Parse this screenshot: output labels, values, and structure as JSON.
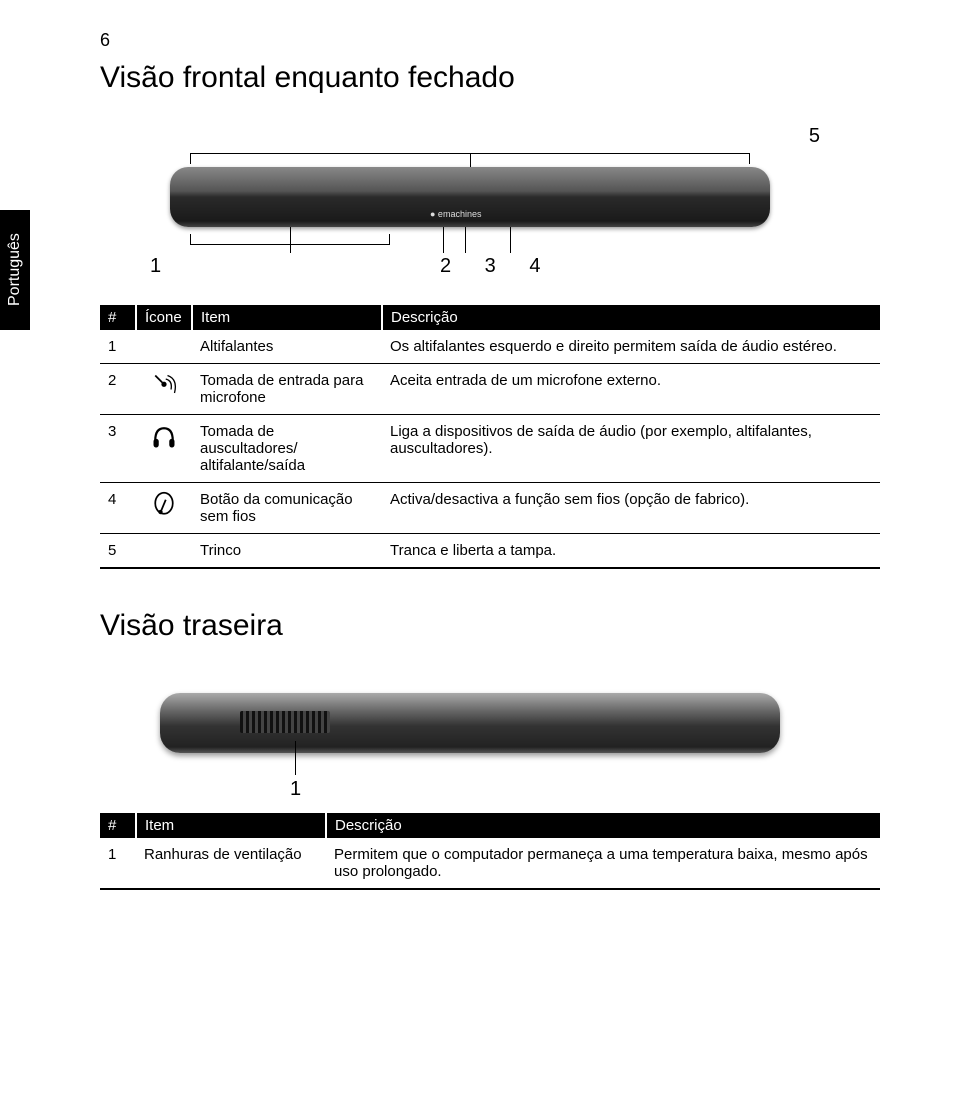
{
  "page_number": "6",
  "sidebar_label": "Português",
  "section1": {
    "title": "Visão frontal enquanto fechado",
    "callouts": {
      "c1": "1",
      "c234": "2 3  4",
      "c5": "5"
    },
    "table": {
      "headers": {
        "num": "#",
        "icon": "Ícone",
        "item": "Item",
        "desc": "Descrição"
      },
      "rows": [
        {
          "num": "1",
          "icon": "",
          "item": "Altifalantes",
          "desc": "Os altifalantes esquerdo e direito permitem saída de áudio estéreo."
        },
        {
          "num": "2",
          "icon": "mic",
          "item": "Tomada de entrada para microfone",
          "desc": "Aceita entrada de um microfone externo."
        },
        {
          "num": "3",
          "icon": "headphones",
          "item": "Tomada de auscultadores/ altifalante/saída",
          "desc": "Liga a dispositivos de saída de áudio (por exemplo, altifalantes, auscultadores)."
        },
        {
          "num": "4",
          "icon": "wireless",
          "item": "Botão da comunicação sem fios",
          "desc": "Activa/desactiva a função sem fios (opção de fabrico)."
        },
        {
          "num": "5",
          "icon": "",
          "item": "Trinco",
          "desc": "Tranca e liberta a tampa."
        }
      ]
    }
  },
  "section2": {
    "title": "Visão traseira",
    "callout": "1",
    "table": {
      "headers": {
        "num": "#",
        "item": "Item",
        "desc": "Descrição"
      },
      "rows": [
        {
          "num": "1",
          "item": "Ranhuras de ventilação",
          "desc": "Permitem que o computador permaneça a uma temperatura baixa, mesmo após uso prolongado."
        }
      ]
    }
  }
}
